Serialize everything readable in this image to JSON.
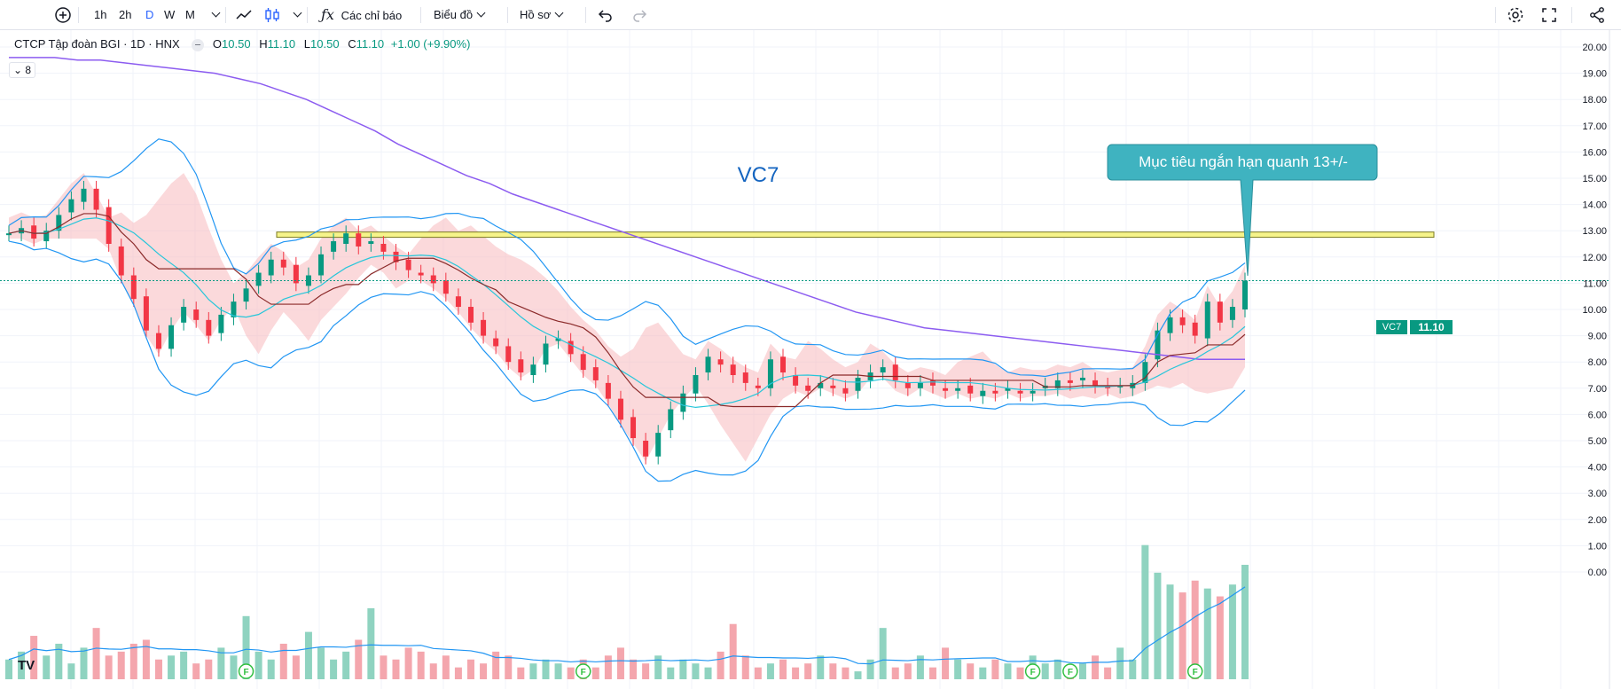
{
  "toolbar": {
    "intervals": [
      "1h",
      "2h",
      "D",
      "W",
      "M"
    ],
    "active_interval": "D",
    "indicators_label": "Các chỉ báo",
    "chart_menu_label": "Biểu đồ",
    "profile_menu_label": "Hồ sơ"
  },
  "legend": {
    "title": "CTCP Tập đoàn BGI · 1D · HNX",
    "open_key": "O",
    "open": "10.50",
    "high_key": "H",
    "high": "11.10",
    "low_key": "L",
    "low": "10.50",
    "close_key": "C",
    "close": "11.10",
    "change": "+1.00 (+9.90%)"
  },
  "indicator_count": "8",
  "annotation_text": "VC7",
  "callout_text": "Mục tiêu ngắn hạn quanh 13+/-",
  "last_price_label": "11.10",
  "symbol_label": "VC7",
  "tv_logo": "TV",
  "event_marker": "F",
  "colors": {
    "up": "#089981",
    "down": "#f23645",
    "ma_long": "#8c5cf0",
    "bollinger": "#2196f3",
    "cloud_bear": "#f7b9bd",
    "cloud_bull": "#c8e6c9",
    "target_zone": "#f6f48a",
    "callout": "#3fb3c0",
    "annotation": "#1565c0"
  },
  "chart_data": {
    "type": "candlestick",
    "title": "",
    "y_ticks": [
      "20.00",
      "19.00",
      "18.00",
      "17.00",
      "16.00",
      "15.00",
      "14.00",
      "13.00",
      "12.00",
      "11.00",
      "10.00",
      "9.00",
      "8.00",
      "7.00",
      "6.00",
      "5.00",
      "4.00",
      "3.00",
      "2.00",
      "1.00",
      "0.00"
    ],
    "ylim": [
      -0.5,
      20.5
    ],
    "price_close": [
      12.9,
      13.1,
      12.7,
      13.0,
      13.6,
      14.2,
      14.6,
      13.8,
      12.5,
      11.3,
      10.4,
      9.2,
      8.5,
      9.4,
      10.1,
      9.6,
      9.0,
      9.8,
      10.3,
      10.8,
      11.4,
      11.9,
      11.6,
      11.0,
      11.3,
      12.1,
      12.6,
      12.9,
      12.4,
      12.6,
      12.2,
      11.8,
      11.5,
      11.3,
      11.0,
      10.6,
      10.1,
      9.5,
      9.0,
      8.6,
      8.0,
      7.6,
      7.9,
      8.7,
      8.9,
      8.3,
      7.7,
      7.3,
      6.6,
      5.8,
      5.1,
      4.4,
      5.3,
      6.2,
      6.8,
      7.5,
      8.2,
      7.9,
      7.5,
      7.2,
      7.0,
      8.1,
      7.6,
      7.1,
      6.9,
      7.2,
      7.0,
      6.8,
      7.4,
      7.6,
      7.8,
      7.3,
      7.0,
      7.2,
      7.1,
      6.9,
      7.0,
      6.8,
      6.9,
      6.8,
      7.0,
      6.8,
      6.9,
      7.1,
      7.3,
      7.2,
      7.4,
      7.1,
      7.0,
      7.1,
      7.2,
      8.0,
      9.2,
      9.7,
      9.4,
      9.0,
      10.3,
      9.5,
      10.1,
      11.1
    ],
    "volume_scale_note": "",
    "volume": [
      0.5,
      0.7,
      1.1,
      0.6,
      0.9,
      0.4,
      0.8,
      1.3,
      0.6,
      0.7,
      0.9,
      1.0,
      0.5,
      0.6,
      0.7,
      0.4,
      0.5,
      0.8,
      0.6,
      1.6,
      0.7,
      0.5,
      0.9,
      0.6,
      1.2,
      0.8,
      0.5,
      0.7,
      1.0,
      1.8,
      0.6,
      0.5,
      0.8,
      0.7,
      0.4,
      0.6,
      0.3,
      0.5,
      0.4,
      0.7,
      0.6,
      0.3,
      0.4,
      0.5,
      0.4,
      0.3,
      0.5,
      0.3,
      0.6,
      0.8,
      0.5,
      0.4,
      0.6,
      0.3,
      0.5,
      0.4,
      0.3,
      0.7,
      1.4,
      0.6,
      0.3,
      0.4,
      0.5,
      0.3,
      0.4,
      0.6,
      0.4,
      0.3,
      0.2,
      0.5,
      1.3,
      0.3,
      0.4,
      0.6,
      0.3,
      0.8,
      0.5,
      0.4,
      0.3,
      0.5,
      0.4,
      0.3,
      0.6,
      0.4,
      0.5,
      0.3,
      0.4,
      0.6,
      0.3,
      0.8,
      0.5,
      3.4,
      2.7,
      2.4,
      2.2,
      2.5,
      2.3,
      2.1,
      2.4,
      2.9
    ],
    "volume_ylim": [
      0,
      4.0
    ],
    "ma_long": [
      19.6,
      19.6,
      19.6,
      19.5,
      19.5,
      19.4,
      19.3,
      19.2,
      19.1,
      19.0,
      18.8,
      18.6,
      18.3,
      18.0,
      17.6,
      17.2,
      16.8,
      16.3,
      15.9,
      15.5,
      15.1,
      14.8,
      14.4,
      14.1,
      13.8,
      13.5,
      13.2,
      12.9,
      12.6,
      12.3,
      12.0,
      11.7,
      11.4,
      11.1,
      10.8,
      10.5,
      10.2,
      9.9,
      9.7,
      9.5,
      9.3,
      9.2,
      9.1,
      9.0,
      8.9,
      8.8,
      8.7,
      8.6,
      8.5,
      8.4,
      8.3,
      8.2,
      8.1,
      8.1,
      8.1
    ],
    "target_zone": [
      12.75,
      12.95
    ],
    "event_markers_x_index": [
      19,
      46,
      82,
      85,
      95
    ]
  }
}
